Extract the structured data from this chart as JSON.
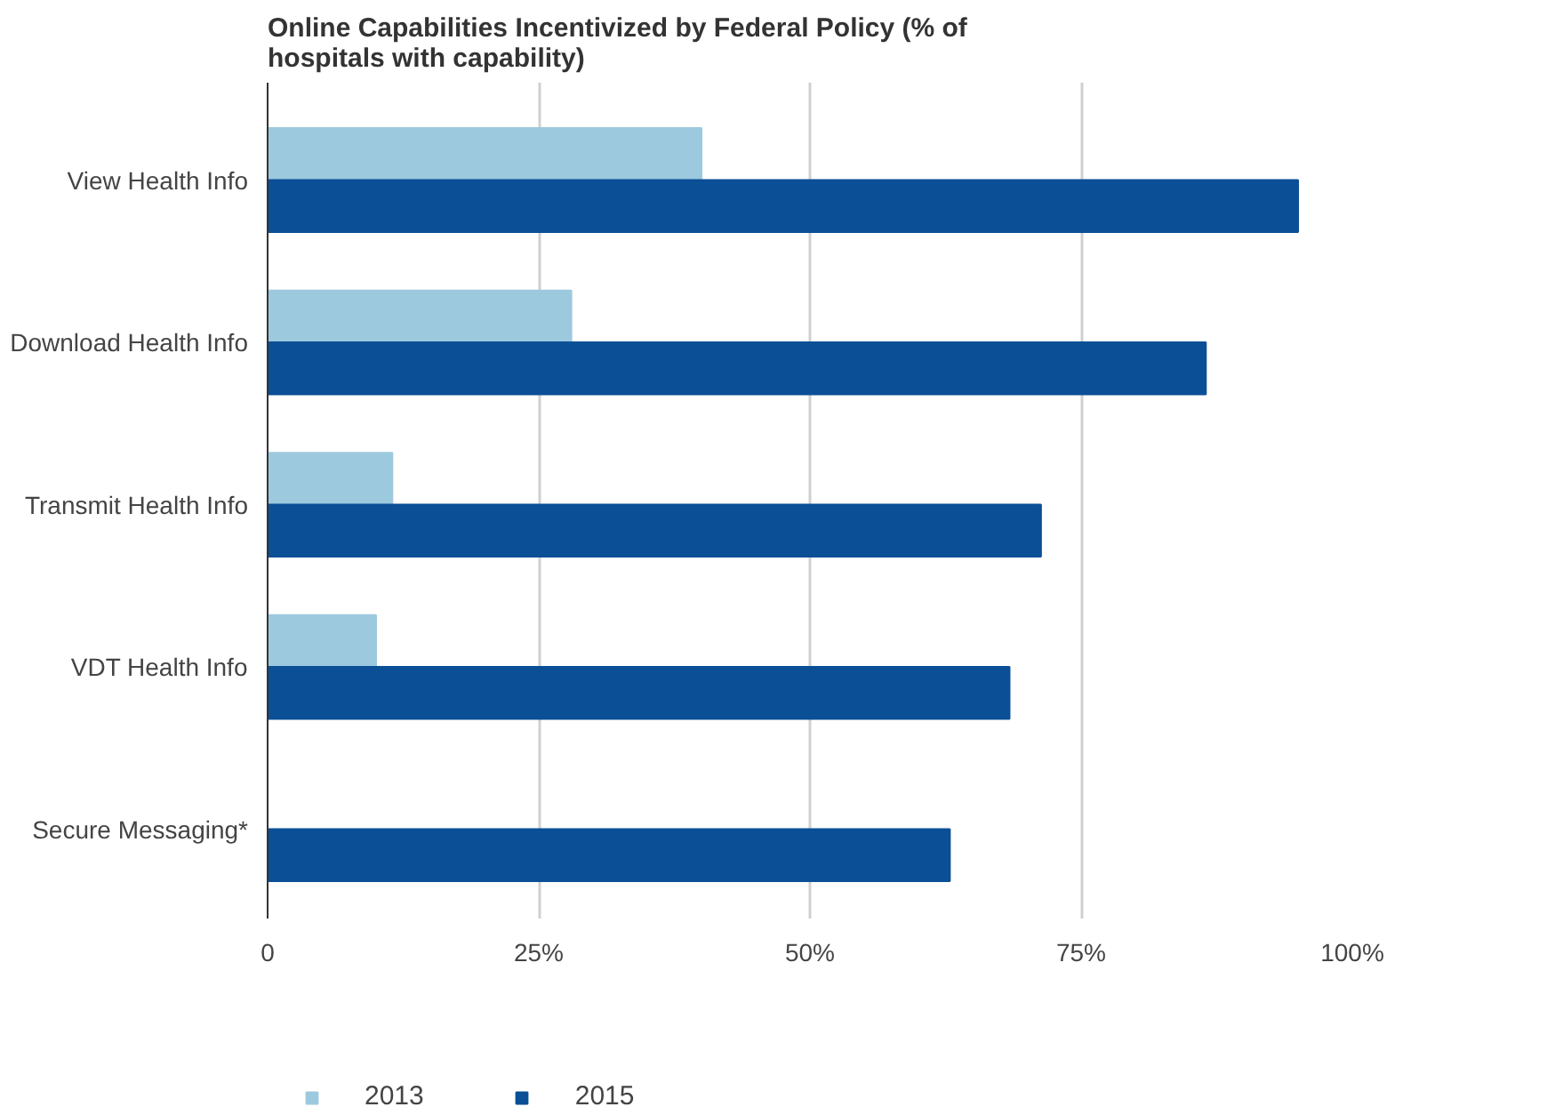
{
  "chart_data": {
    "type": "bar",
    "orientation": "horizontal",
    "title": "Online Capabilities Incentivized by Federal Policy (% of\nhospitals with capability)",
    "categories": [
      "View Health Info",
      "Download Health Info",
      "Transmit Health Info",
      "VDT Health Info",
      "Secure Messaging*"
    ],
    "series": [
      {
        "name": "2013",
        "color": "#9dc9de",
        "values": [
          40,
          28,
          11.5,
          10,
          null
        ]
      },
      {
        "name": "2015",
        "color": "#0b4f96",
        "values": [
          95,
          86.5,
          71.3,
          68.4,
          62.9
        ]
      }
    ],
    "xlim": [
      0,
      100
    ],
    "xticks": [
      {
        "value": 0,
        "label": "0"
      },
      {
        "value": 25,
        "label": "25%"
      },
      {
        "value": 50,
        "label": "50%"
      },
      {
        "value": 75,
        "label": "75%"
      },
      {
        "value": 100,
        "label": "100%"
      }
    ],
    "grid": "x",
    "legend": "bottom left"
  }
}
